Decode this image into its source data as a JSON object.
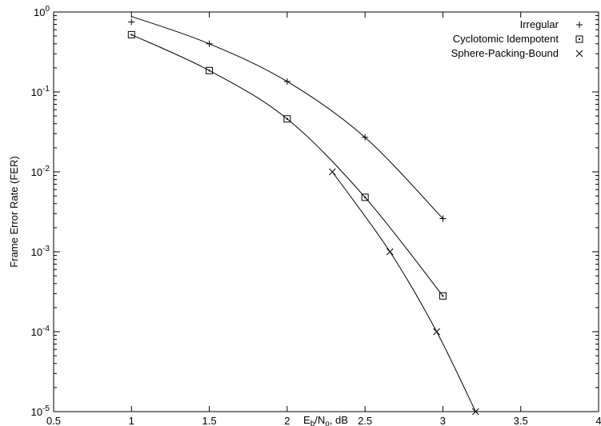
{
  "chart_data": {
    "type": "line",
    "title": "",
    "xlabel": {
      "base": "E",
      "sub1": "b",
      "mid": "/N",
      "sub2": "o",
      "tail": ", dB"
    },
    "ylabel": "Frame Error Rate (FER)",
    "xlim": [
      0.5,
      4
    ],
    "ylim": [
      1e-05,
      1
    ],
    "yscale": "log",
    "grid": false,
    "legend_position": "top-right",
    "x_ticks": [
      "0.5",
      "1",
      "1.5",
      "2",
      "2.5",
      "3",
      "3.5",
      "4"
    ],
    "y_ticks": [
      {
        "base": "10",
        "exp": "-5"
      },
      {
        "base": "10",
        "exp": "-4"
      },
      {
        "base": "10",
        "exp": "-3"
      },
      {
        "base": "10",
        "exp": "-2"
      },
      {
        "base": "10",
        "exp": "-1"
      },
      {
        "base": "10",
        "exp": "0"
      }
    ],
    "series": [
      {
        "name": "Irregular",
        "marker": "plus",
        "x": [
          1,
          1.5,
          2,
          2.5,
          3
        ],
        "y": [
          0.75,
          0.4,
          0.135,
          0.027,
          0.0026
        ],
        "fit_x": [
          1,
          1.5,
          2,
          2.5,
          3
        ],
        "fit_y": [
          0.88,
          0.4,
          0.135,
          0.027,
          0.0026
        ]
      },
      {
        "name": "Cyclotomic Idempotent",
        "marker": "square-dot",
        "x": [
          1,
          1.5,
          2,
          2.5,
          3
        ],
        "y": [
          0.52,
          0.185,
          0.046,
          0.0048,
          0.00028
        ],
        "fit_x": [
          1,
          1.5,
          2,
          2.5,
          3
        ],
        "fit_y": [
          0.52,
          0.185,
          0.046,
          0.0048,
          0.00028
        ]
      },
      {
        "name": "Sphere-Packing-Bound",
        "marker": "cross",
        "x": [
          2.29,
          2.66,
          2.96,
          3.21
        ],
        "y": [
          0.01,
          0.001,
          0.0001,
          1e-05
        ],
        "fit_x": [
          2.29,
          2.66,
          2.96,
          3.21
        ],
        "fit_y": [
          0.01,
          0.001,
          0.0001,
          1e-05
        ]
      }
    ]
  },
  "colors": {
    "line": "#000000",
    "background": "#ffffff"
  }
}
